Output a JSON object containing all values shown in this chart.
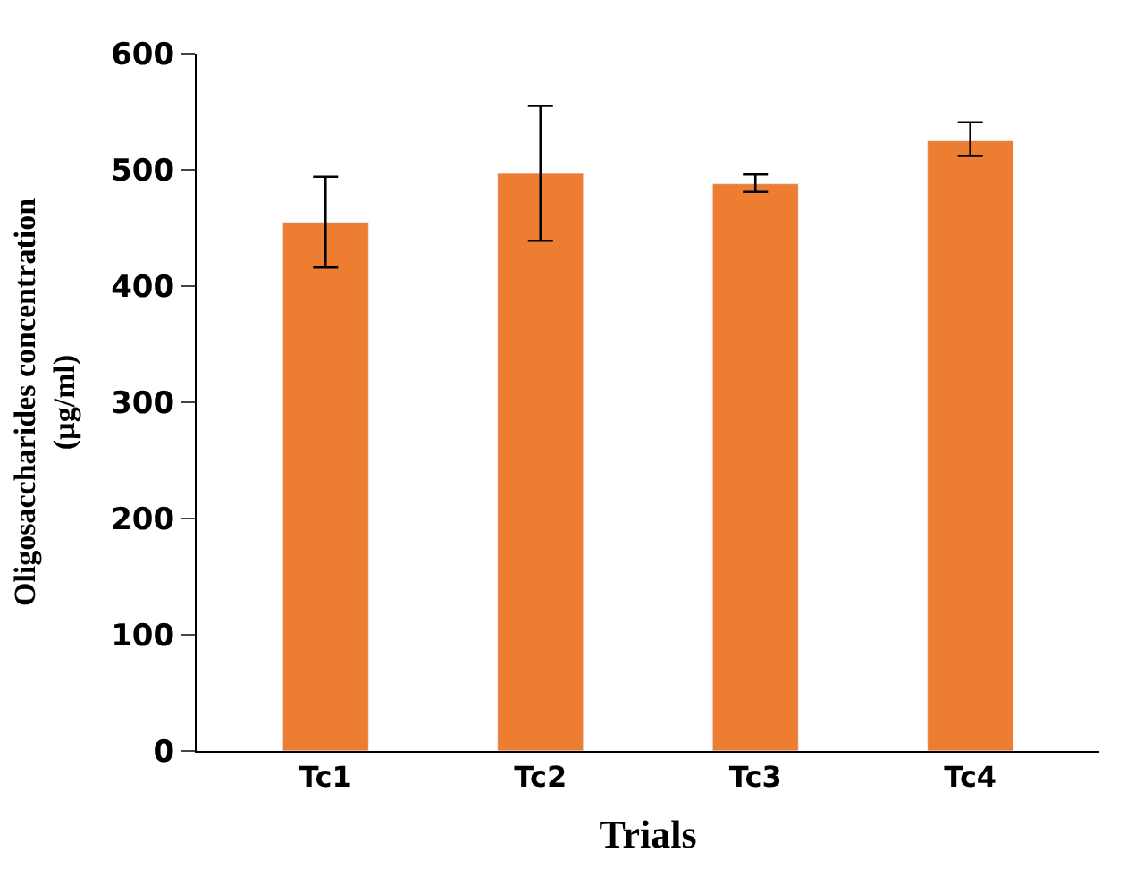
{
  "chart_data": {
    "type": "bar",
    "xlabel": "Trials",
    "ylabel": "Oligosaccharides concentration\n(µg/ml)",
    "categories": [
      "Tc1",
      "Tc2",
      "Tc3",
      "Tc4"
    ],
    "values": [
      455,
      497,
      488,
      525
    ],
    "color": "#ed7d31",
    "errors": [
      [
        416,
        494
      ],
      [
        439,
        555
      ],
      [
        481,
        496
      ],
      [
        512,
        541
      ]
    ],
    "ylim": [
      0,
      600
    ],
    "yticks": [
      0,
      100,
      200,
      300,
      400,
      500,
      600
    ]
  }
}
